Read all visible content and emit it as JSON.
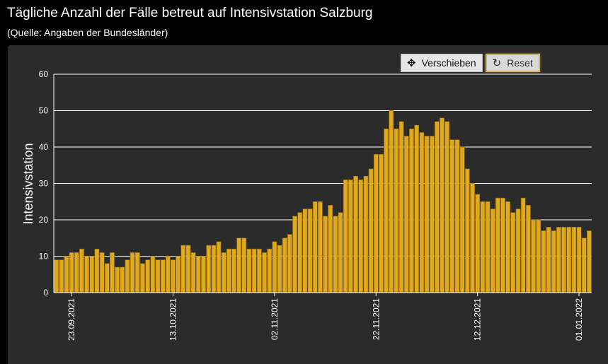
{
  "header": {
    "title": "Tägliche Anzahl der Fälle betreut auf Intensivstation Salzburg",
    "subtitle": "(Quelle: Angaben der Bundesländer)"
  },
  "toolbar": {
    "pan_label": "Verschieben",
    "pan_icon": "move-arrows-icon",
    "reset_label": "Reset",
    "reset_icon": "rotate-icon"
  },
  "colors": {
    "bar": "#e0a81c",
    "bar_edge": "#8a6508",
    "panel": "#2b2b2b",
    "grid": "#ffffff"
  },
  "chart_data": {
    "type": "bar",
    "ylabel": "Intensivstation",
    "ylim": [
      0,
      60
    ],
    "yticks": [
      0,
      10,
      20,
      30,
      40,
      50,
      60
    ],
    "x_start": "2021-09-20",
    "x_ticks": [
      "23.09.2021",
      "13.10.2021",
      "02.11.2021",
      "22.11.2021",
      "12.12.2021",
      "01.01.2022"
    ],
    "grid": "horizontal",
    "values": [
      9,
      9,
      10,
      11,
      11,
      12,
      10,
      10,
      12,
      11,
      8,
      11,
      7,
      7,
      9,
      11,
      11,
      8,
      9,
      10,
      9,
      9,
      10,
      9,
      10,
      13,
      13,
      11,
      10,
      10,
      13,
      13,
      14,
      11,
      12,
      12,
      15,
      15,
      12,
      12,
      12,
      11,
      12,
      14,
      13,
      15,
      16,
      21,
      22,
      23,
      23,
      25,
      25,
      21,
      24,
      21,
      22,
      31,
      31,
      32,
      31,
      32,
      34,
      38,
      38,
      45,
      50,
      45,
      47,
      43,
      45,
      46,
      44,
      43,
      43,
      47,
      48,
      47,
      42,
      42,
      40,
      34,
      30,
      27,
      25,
      25,
      23,
      26,
      26,
      25,
      22,
      23,
      26,
      24,
      20,
      20,
      17,
      18,
      17,
      18,
      18,
      18,
      18,
      18,
      15,
      17
    ]
  }
}
